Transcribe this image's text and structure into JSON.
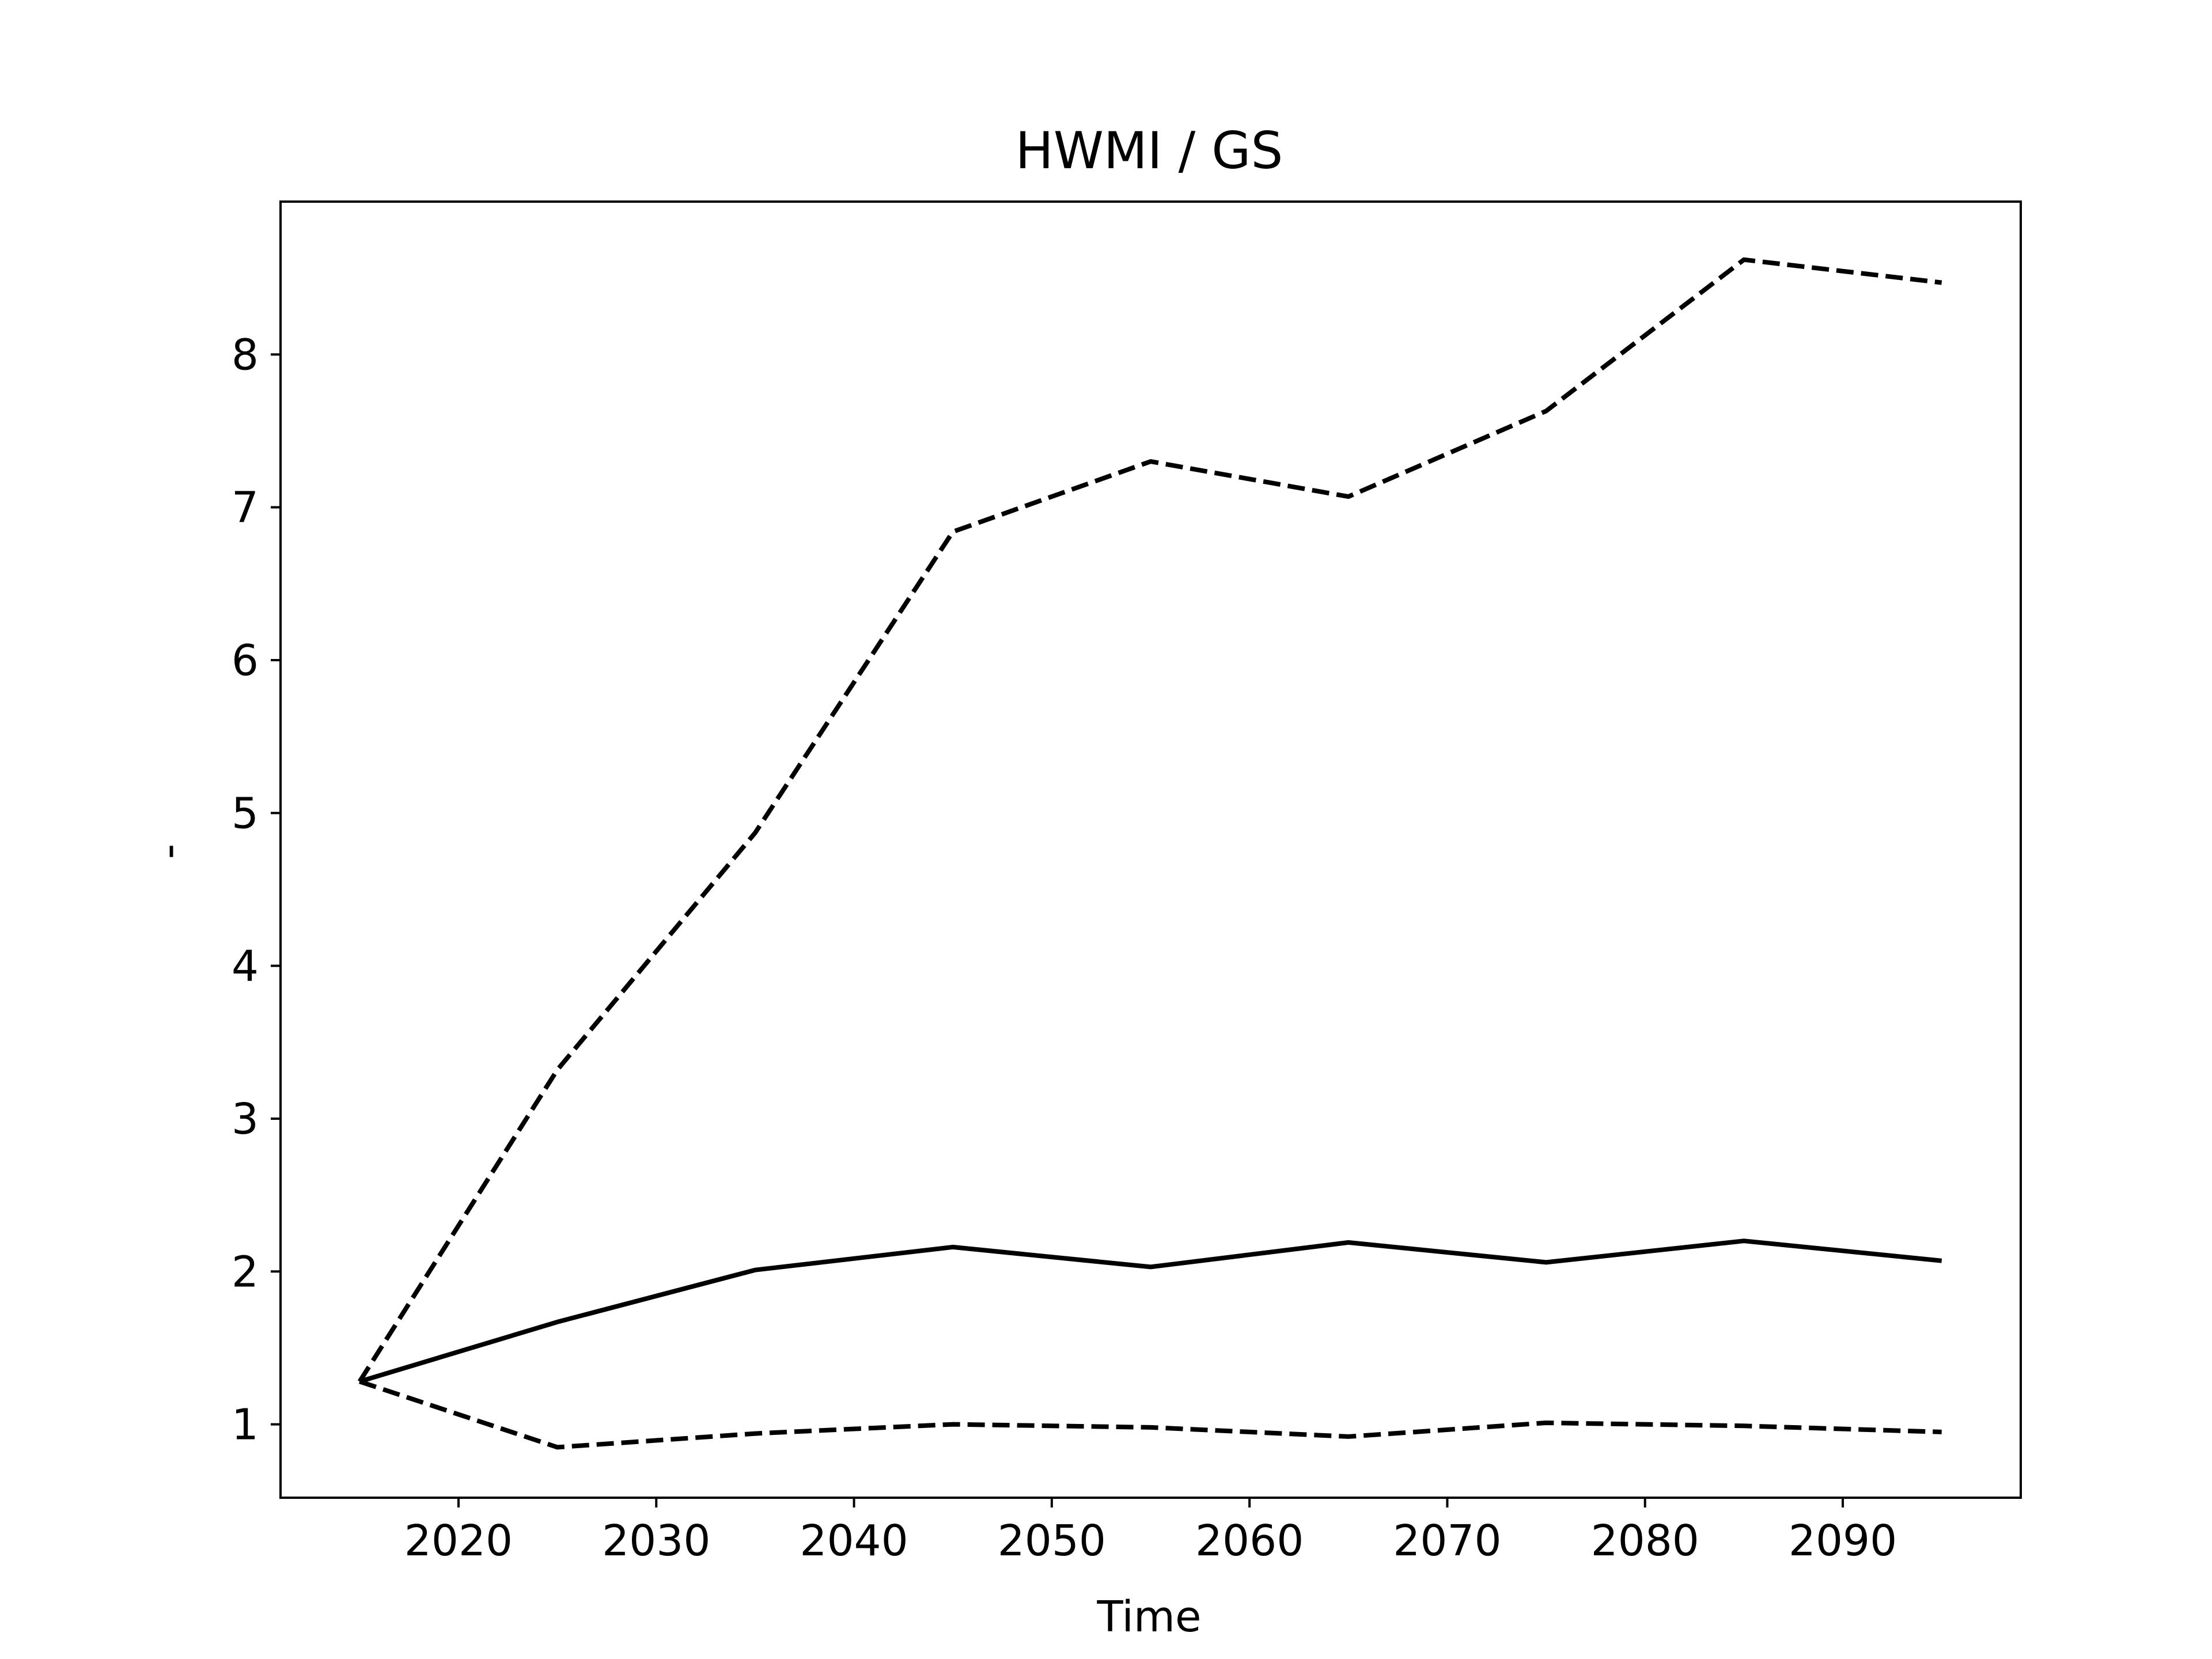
{
  "chart_data": {
    "type": "line",
    "title": "HWMI / GS",
    "xlabel": "Time",
    "ylabel": "-",
    "x": [
      2015,
      2025,
      2035,
      2045,
      2055,
      2065,
      2075,
      2085,
      2095
    ],
    "xlim": [
      2011,
      2099
    ],
    "ylim": [
      0.52,
      9.0
    ],
    "xticks": [
      2020,
      2030,
      2040,
      2050,
      2060,
      2070,
      2080,
      2090
    ],
    "yticks": [
      1,
      2,
      3,
      4,
      5,
      6,
      7,
      8
    ],
    "grid": false,
    "legend": "none",
    "color": "#000000",
    "series": [
      {
        "style": "solid",
        "values": [
          1.28,
          1.67,
          2.01,
          2.16,
          2.03,
          2.19,
          2.06,
          2.2,
          2.07
        ]
      },
      {
        "style": "dashed",
        "values": [
          1.28,
          3.32,
          4.87,
          6.84,
          7.3,
          7.07,
          7.63,
          8.62,
          8.47
        ]
      },
      {
        "style": "dashed",
        "values": [
          1.28,
          0.85,
          0.94,
          1.0,
          0.98,
          0.92,
          1.01,
          0.99,
          0.95
        ]
      }
    ]
  }
}
